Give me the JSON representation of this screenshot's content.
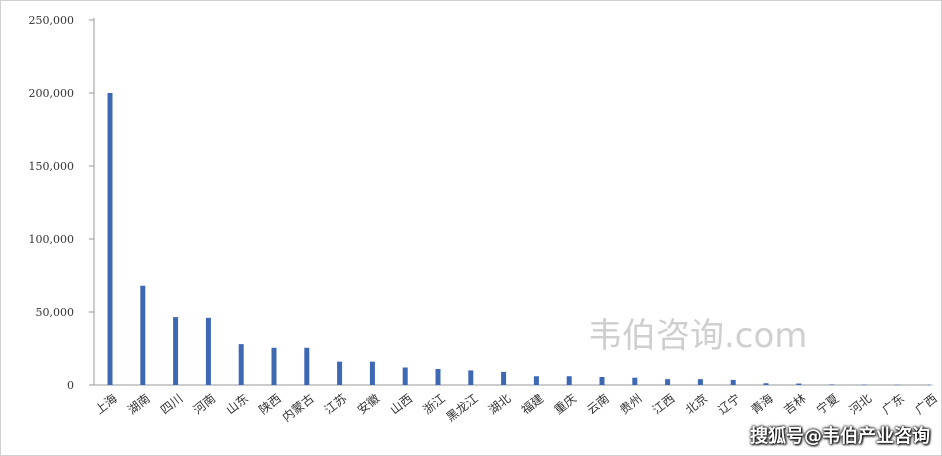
{
  "chart_data": {
    "type": "bar",
    "title": "",
    "xlabel": "",
    "ylabel": "",
    "ylim": [
      0,
      250000
    ],
    "yticks": [
      0,
      50000,
      100000,
      150000,
      200000,
      250000
    ],
    "ytick_labels": [
      "0",
      "50,000",
      "100,000",
      "150,000",
      "200,000",
      "250,000"
    ],
    "grid": false,
    "legend": "none",
    "bar_color": "#3e68b3",
    "categories": [
      "上海",
      "湖南",
      "四川",
      "河南",
      "山东",
      "陕西",
      "内蒙古",
      "江苏",
      "安徽",
      "山西",
      "浙江",
      "黑龙江",
      "湖北",
      "福建",
      "重庆",
      "云南",
      "贵州",
      "江西",
      "北京",
      "辽宁",
      "青海",
      "吉林",
      "宁夏",
      "河北",
      "广东",
      "广西"
    ],
    "values": [
      200000,
      68000,
      46500,
      46000,
      28000,
      25500,
      25500,
      16000,
      16000,
      12000,
      11000,
      10000,
      9000,
      6000,
      6000,
      5500,
      5000,
      4000,
      4000,
      3500,
      1200,
      1000,
      400,
      300,
      200,
      200
    ]
  },
  "watermark": "韦伯咨询.com",
  "source_credit": "搜狐号@韦伯产业咨询"
}
